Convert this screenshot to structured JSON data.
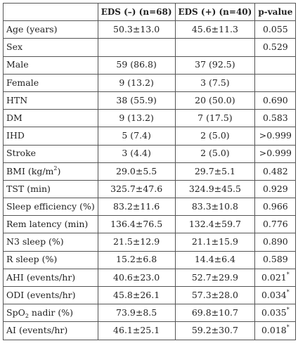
{
  "table": {
    "headers": [
      "",
      "EDS (–) (n=68)",
      "EDS (+) (n=40)",
      "p-value"
    ],
    "rows": [
      {
        "label": "Age (years)",
        "label_sup": "",
        "label_sub": "",
        "label_post": "",
        "a": "50.3±13.0",
        "b": "45.6±11.3",
        "p": "0.055",
        "p_sup": ""
      },
      {
        "label": "Sex",
        "label_sup": "",
        "label_sub": "",
        "label_post": "",
        "a": "",
        "b": "",
        "p": "0.529",
        "p_sup": ""
      },
      {
        "label": "Male",
        "label_sup": "",
        "label_sub": "",
        "label_post": "",
        "a": "59 (86.8)",
        "b": "37 (92.5)",
        "p": "",
        "p_sup": ""
      },
      {
        "label": "Female",
        "label_sup": "",
        "label_sub": "",
        "label_post": "",
        "a": "9 (13.2)",
        "b": "3 (7.5)",
        "p": "",
        "p_sup": ""
      },
      {
        "label": "HTN",
        "label_sup": "",
        "label_sub": "",
        "label_post": "",
        "a": "38 (55.9)",
        "b": "20 (50.0)",
        "p": "0.690",
        "p_sup": ""
      },
      {
        "label": "DM",
        "label_sup": "",
        "label_sub": "",
        "label_post": "",
        "a": "9 (13.2)",
        "b": "7 (17.5)",
        "p": "0.583",
        "p_sup": ""
      },
      {
        "label": "IHD",
        "label_sup": "",
        "label_sub": "",
        "label_post": "",
        "a": "5 (7.4)",
        "b": "2 (5.0)",
        "p": ">0.999",
        "p_sup": ""
      },
      {
        "label": "Stroke",
        "label_sup": "",
        "label_sub": "",
        "label_post": "",
        "a": "3 (4.4)",
        "b": "2 (5.0)",
        "p": ">0.999",
        "p_sup": ""
      },
      {
        "label": "BMI (kg/m",
        "label_sup": "2",
        "label_sub": "",
        "label_post": ")",
        "a": "29.0±5.5",
        "b": "29.7±5.1",
        "p": "0.482",
        "p_sup": ""
      },
      {
        "label": "TST (min)",
        "label_sup": "",
        "label_sub": "",
        "label_post": "",
        "a": "325.7±47.6",
        "b": "324.9±45.5",
        "p": "0.929",
        "p_sup": ""
      },
      {
        "label": "Sleep efficiency (%)",
        "label_sup": "",
        "label_sub": "",
        "label_post": "",
        "a": "83.2±11.6",
        "b": "83.3±10.8",
        "p": "0.966",
        "p_sup": ""
      },
      {
        "label": "Rem latency (min)",
        "label_sup": "",
        "label_sub": "",
        "label_post": "",
        "a": "136.4±76.5",
        "b": "132.4±59.7",
        "p": "0.776",
        "p_sup": ""
      },
      {
        "label": "N3 sleep (%)",
        "label_sup": "",
        "label_sub": "",
        "label_post": "",
        "a": "21.5±12.9",
        "b": "21.1±15.9",
        "p": "0.890",
        "p_sup": ""
      },
      {
        "label": "R sleep (%)",
        "label_sup": "",
        "label_sub": "",
        "label_post": "",
        "a": "15.2±6.8",
        "b": "14.4±6.4",
        "p": "0.589",
        "p_sup": ""
      },
      {
        "label": "AHI (events/hr)",
        "label_sup": "",
        "label_sub": "",
        "label_post": "",
        "a": "40.6±23.0",
        "b": "52.7±29.9",
        "p": "0.021",
        "p_sup": "*"
      },
      {
        "label": "ODI (events/hr)",
        "label_sup": "",
        "label_sub": "",
        "label_post": "",
        "a": "45.8±26.1",
        "b": "57.3±28.0",
        "p": "0.034",
        "p_sup": "*"
      },
      {
        "label": "SpO",
        "label_sup": "",
        "label_sub": "2",
        "label_post": " nadir (%)",
        "a": "73.9±8.5",
        "b": "69.8±10.7",
        "p": "0.035",
        "p_sup": "*"
      },
      {
        "label": "AI (events/hr)",
        "label_sup": "",
        "label_sub": "",
        "label_post": "",
        "a": "46.1±25.1",
        "b": "59.2±30.7",
        "p": "0.018",
        "p_sup": "*"
      }
    ]
  }
}
